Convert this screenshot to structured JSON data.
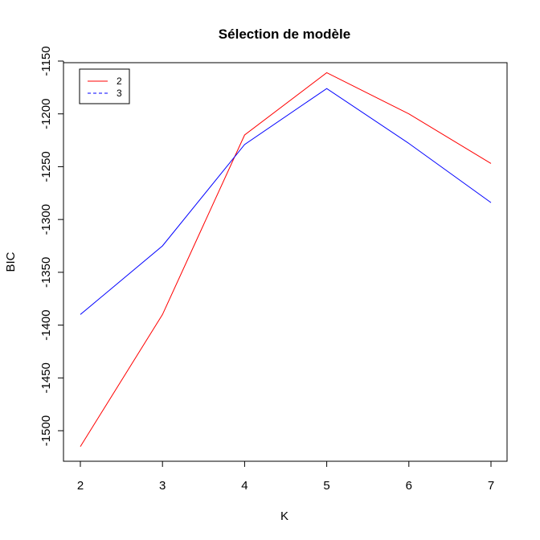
{
  "chart_data": {
    "type": "line",
    "title": "Sélection de modèle",
    "xlabel": "K",
    "ylabel": "BIC",
    "x": [
      2,
      3,
      4,
      5,
      6,
      7
    ],
    "xlim": [
      2,
      7
    ],
    "ylim": [
      -1515,
      -1150
    ],
    "xticks": [
      2,
      3,
      4,
      5,
      6,
      7
    ],
    "yticks": [
      -1500,
      -1450,
      -1400,
      -1350,
      -1300,
      -1250,
      -1200,
      -1150
    ],
    "grid": false,
    "legend_position": "top-left",
    "series": [
      {
        "name": "2",
        "color": "#ff0000",
        "dash": "solid",
        "values": [
          -1515,
          -1390,
          -1220,
          -1161,
          -1200,
          -1247
        ]
      },
      {
        "name": "3",
        "color": "#0000ff",
        "dash": "dashed",
        "values": [
          -1390,
          -1325,
          -1229,
          -1176,
          -1228,
          -1284
        ]
      }
    ]
  }
}
